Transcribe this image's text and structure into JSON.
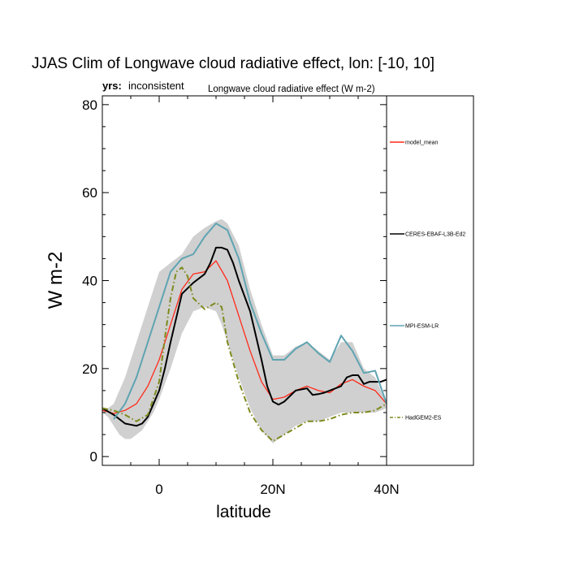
{
  "chart_data": {
    "type": "line",
    "title": "JJAS Clim of Longwave cloud radiative effect, lon: [-10, 10]",
    "subtitle_left_bold": "yrs:",
    "subtitle_left": "inconsistent",
    "subtitle_right": "Longwave cloud radiative effect (W m-2)",
    "xlabel": "latitude",
    "ylabel": "W m-2",
    "xlim": [
      -10,
      40
    ],
    "ylim": [
      -2,
      82
    ],
    "x_ticks": [
      0,
      20,
      40
    ],
    "x_tick_labels": [
      "0",
      "20N",
      "40N"
    ],
    "y_ticks": [
      0,
      20,
      40,
      60,
      80
    ],
    "y_tick_labels": [
      "0",
      "20",
      "40",
      "60",
      "80"
    ],
    "grid": false,
    "legend_placement": "right",
    "shade": {
      "color": "#d0d0d0",
      "x": [
        -10,
        -9,
        -8,
        -7,
        -6,
        -5,
        -4,
        -3,
        -2,
        -1,
        0,
        2,
        4,
        6,
        8,
        10,
        11,
        12,
        14,
        16,
        18,
        20,
        22,
        24,
        26,
        28,
        30,
        32,
        34,
        36,
        38,
        40
      ],
      "upper": [
        11,
        11,
        12,
        15,
        18,
        22,
        26,
        30,
        34,
        38,
        42,
        44,
        46,
        50,
        52,
        53.5,
        54,
        53,
        48,
        38,
        30,
        23,
        23,
        25,
        26,
        24,
        22,
        26,
        26,
        20,
        18,
        12
      ],
      "lower": [
        10,
        9,
        7,
        5,
        4,
        4,
        5,
        6,
        8,
        10,
        13,
        20,
        28,
        33,
        34,
        33,
        30,
        26,
        18,
        11,
        6,
        3,
        5,
        7,
        8,
        8,
        9,
        10,
        10,
        10,
        10,
        11
      ]
    },
    "series": [
      {
        "name": "model_mean",
        "color": "#ff2a1a",
        "dash": "solid",
        "x": [
          -10,
          -8,
          -6,
          -4,
          -2,
          0,
          2,
          4,
          6,
          8,
          10,
          12,
          14,
          16,
          18,
          20,
          22,
          24,
          26,
          28,
          30,
          32,
          34,
          36,
          38,
          40
        ],
        "values": [
          10.5,
          9.8,
          10.5,
          12,
          16,
          22,
          30,
          38,
          41.5,
          42,
          44.5,
          40,
          32,
          24,
          17,
          13,
          13.5,
          15,
          16,
          15,
          14.5,
          16.5,
          17.5,
          16,
          15,
          12
        ]
      },
      {
        "name": "CERES-EBAF-L3B-Ed2",
        "color": "#000000",
        "dash": "solid",
        "x": [
          -10,
          -8,
          -6,
          -4,
          -3,
          -2,
          -1,
          0,
          1,
          2,
          4,
          6,
          8,
          9,
          10,
          11,
          12,
          13,
          14,
          16,
          18,
          19,
          20,
          21,
          22,
          24,
          26,
          27,
          28,
          29,
          30,
          31,
          32,
          33,
          34,
          35,
          36,
          37,
          38,
          39,
          40
        ],
        "values": [
          11,
          9.5,
          7.5,
          7,
          7.5,
          9,
          12,
          15,
          20,
          26,
          37,
          39.5,
          41.5,
          44,
          47.5,
          47.5,
          47,
          44,
          40,
          33,
          22,
          16,
          12.5,
          11.8,
          12.5,
          15,
          15.5,
          14,
          14.2,
          14.5,
          15,
          15.5,
          16,
          18,
          18.5,
          18.5,
          16.5,
          17,
          17,
          17,
          17.5
        ]
      },
      {
        "name": "MPI-ESM-LR",
        "color": "#5fa4b2",
        "dash": "solid",
        "x": [
          -8,
          -6,
          -4,
          -2,
          0,
          2,
          4,
          6,
          8,
          10,
          12,
          14,
          16,
          18,
          20,
          22,
          24,
          26,
          28,
          30,
          32,
          34,
          36,
          38,
          40
        ],
        "values": [
          8.5,
          12,
          18,
          26,
          34,
          42,
          45,
          46,
          50,
          53,
          51.5,
          45,
          35,
          28,
          22,
          22,
          24.5,
          26,
          23.5,
          21.5,
          27.5,
          24,
          19,
          19.5,
          12
        ]
      },
      {
        "name": "HadGEM2-ES",
        "color": "#7f8a1e",
        "dash": "dashdot",
        "x": [
          -10,
          -8,
          -6,
          -4,
          -2,
          0,
          1,
          2,
          3,
          4,
          5,
          6,
          8,
          10,
          11,
          12,
          14,
          16,
          18,
          20,
          22,
          24,
          26,
          28,
          30,
          32,
          34,
          36,
          38,
          40
        ],
        "values": [
          11,
          10.5,
          9.5,
          8,
          9.5,
          17,
          27,
          36,
          42,
          43,
          41,
          36,
          33.5,
          35,
          34,
          26,
          17,
          10,
          6,
          3.5,
          5,
          6.5,
          8,
          8,
          8.5,
          9.5,
          10,
          10,
          10.5,
          12
        ]
      }
    ]
  }
}
